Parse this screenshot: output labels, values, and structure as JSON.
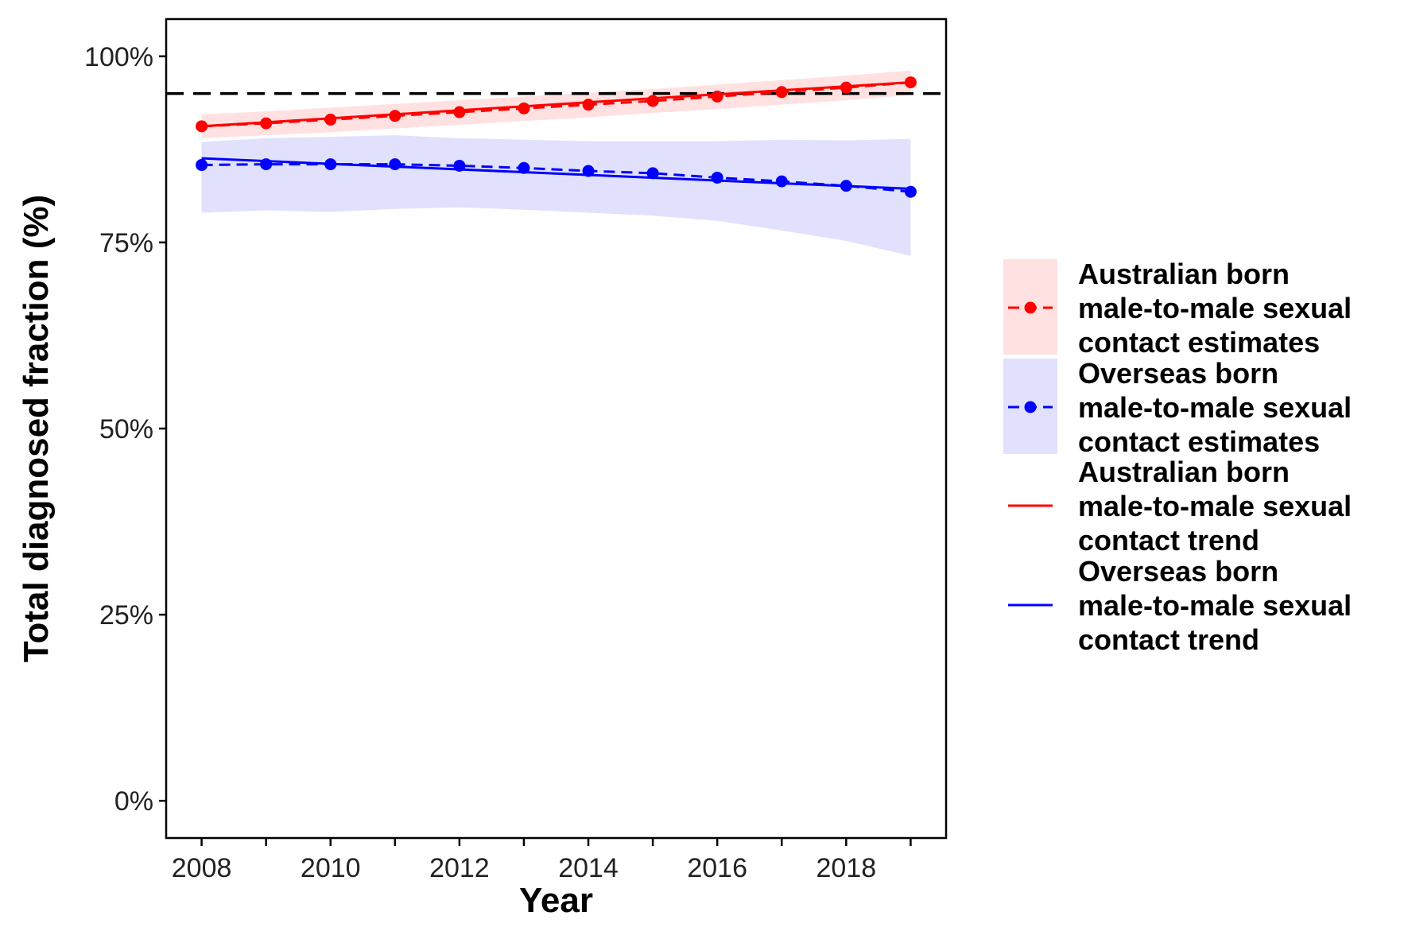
{
  "chart_data": {
    "type": "line",
    "xlabel": "Year",
    "ylabel": "Total diagnosed fraction  (%)",
    "x_ticks": [
      "2008",
      "2010",
      "2012",
      "2014",
      "2016",
      "2018"
    ],
    "y_ticks": [
      "0%",
      "25%",
      "50%",
      "75%",
      "100%"
    ],
    "xlim": [
      2007.45,
      2019.55
    ],
    "ylim": [
      -0.05,
      1.05
    ],
    "grid": false,
    "legend_position": "right",
    "reference_line": {
      "y": 0.95,
      "style": "dashed",
      "color": "#000000"
    },
    "series": [
      {
        "name": "Australian born male-to-male sexual contact estimates",
        "legend_lines": [
          "Australian born",
          "male-to-male sexual",
          "contact estimates"
        ],
        "kind": "estimates",
        "color": "#ff0000",
        "band_color": "#ffe1e1",
        "x": [
          2008,
          2009,
          2010,
          2011,
          2012,
          2013,
          2014,
          2015,
          2016,
          2017,
          2018,
          2019
        ],
        "y": [
          0.906,
          0.91,
          0.915,
          0.92,
          0.925,
          0.93,
          0.935,
          0.94,
          0.946,
          0.952,
          0.958,
          0.965
        ],
        "lower": [
          0.89,
          0.894,
          0.898,
          0.903,
          0.908,
          0.913,
          0.918,
          0.924,
          0.929,
          0.935,
          0.941,
          0.948
        ],
        "upper": [
          0.922,
          0.926,
          0.931,
          0.936,
          0.941,
          0.946,
          0.951,
          0.956,
          0.962,
          0.968,
          0.974,
          0.981
        ]
      },
      {
        "name": "Overseas born male-to-male sexual contact estimates",
        "legend_lines": [
          "Overseas born",
          "male-to-male sexual",
          "contact estimates"
        ],
        "kind": "estimates",
        "color": "#0000ff",
        "band_color": "#e1e1fd",
        "x": [
          2008,
          2009,
          2010,
          2011,
          2012,
          2013,
          2014,
          2015,
          2016,
          2017,
          2018,
          2019
        ],
        "y": [
          0.854,
          0.855,
          0.855,
          0.855,
          0.853,
          0.85,
          0.846,
          0.843,
          0.837,
          0.832,
          0.826,
          0.818
        ],
        "lower": [
          0.79,
          0.793,
          0.791,
          0.795,
          0.797,
          0.794,
          0.79,
          0.786,
          0.779,
          0.766,
          0.752,
          0.732
        ],
        "upper": [
          0.885,
          0.89,
          0.892,
          0.894,
          0.89,
          0.888,
          0.886,
          0.886,
          0.886,
          0.888,
          0.887,
          0.889
        ]
      },
      {
        "name": "Australian born male-to-male sexual contact trend",
        "legend_lines": [
          "Australian born",
          "male-to-male sexual",
          "contact trend"
        ],
        "kind": "trend",
        "color": "#ff0000",
        "x": [
          2008,
          2019
        ],
        "y": [
          0.906,
          0.965
        ]
      },
      {
        "name": "Overseas born male-to-male sexual contact trend",
        "legend_lines": [
          "Overseas born",
          "male-to-male sexual",
          "contact trend"
        ],
        "kind": "trend",
        "color": "#0000ff",
        "x": [
          2008,
          2019
        ],
        "y": [
          0.863,
          0.822
        ]
      }
    ]
  }
}
